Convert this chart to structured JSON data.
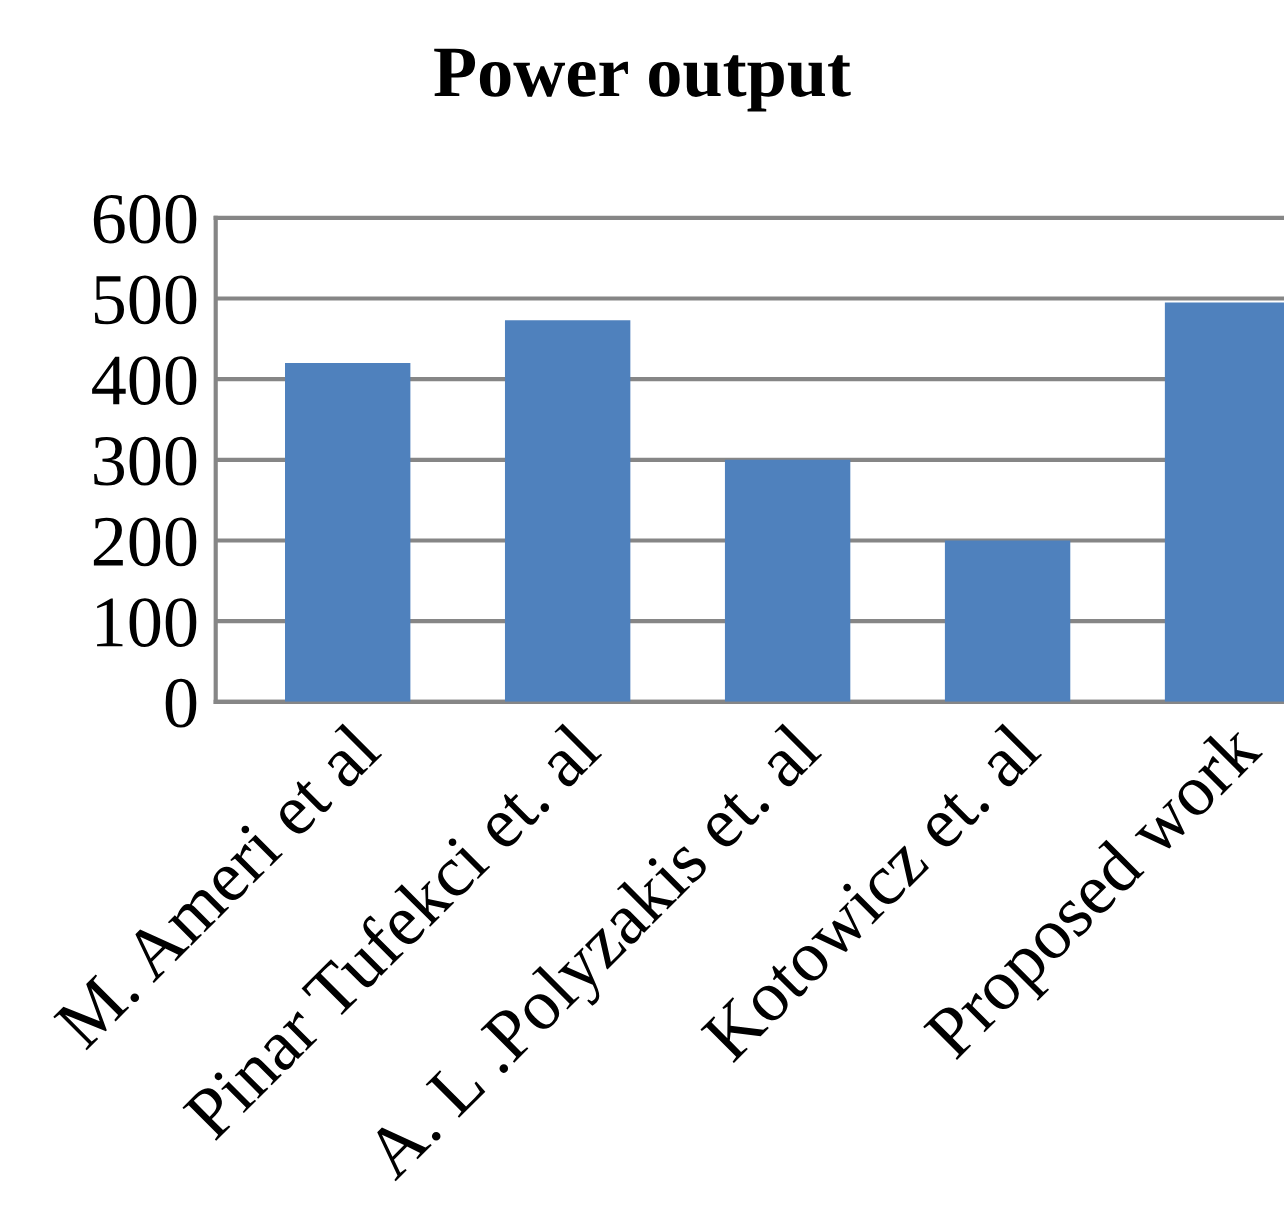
{
  "chart_data": {
    "type": "bar",
    "title": "Power output",
    "categories": [
      "M. Ameri et al",
      "Pinar Tufekci et. al",
      "A. L .Polyzakis et. al",
      "Kotowicz et. al",
      "Proposed work"
    ],
    "values": [
      420,
      473,
      300,
      200,
      495
    ],
    "color": "#4f81bd",
    "ylim": [
      0,
      600
    ],
    "yticks": [
      0,
      100,
      200,
      300,
      400,
      500,
      600
    ],
    "grid": "y"
  }
}
